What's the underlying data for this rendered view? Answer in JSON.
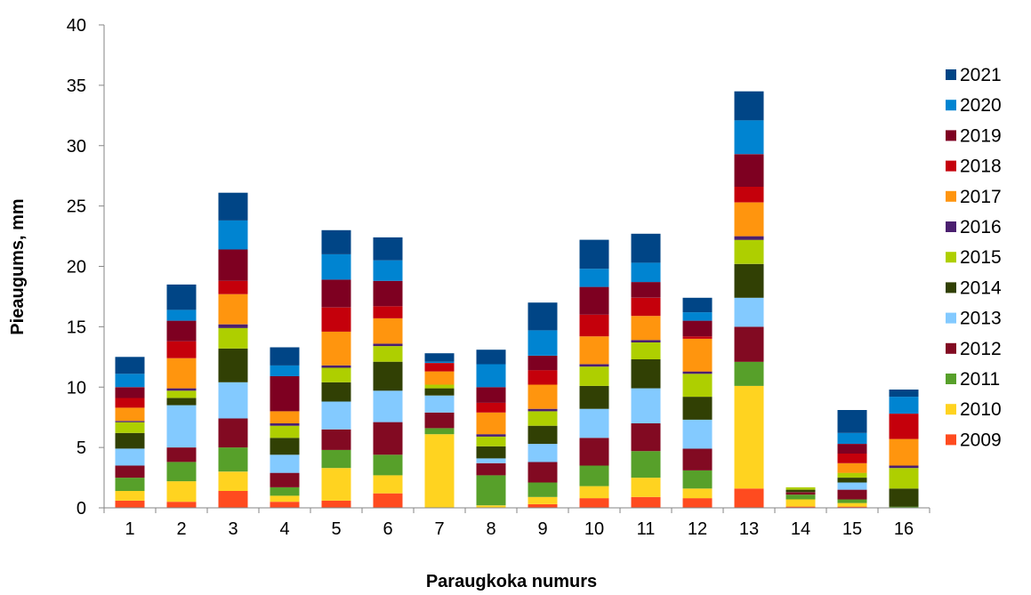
{
  "chart_data": {
    "type": "bar",
    "stacked": true,
    "xlabel": "Paraugkoka numurs",
    "ylabel": "Pieaugums, mm",
    "ylim": [
      0,
      40
    ],
    "yticks": [
      0,
      5,
      10,
      15,
      20,
      25,
      30,
      35,
      40
    ],
    "grid": false,
    "legend_position": "right",
    "categories": [
      "1",
      "2",
      "3",
      "4",
      "5",
      "6",
      "7",
      "8",
      "9",
      "10",
      "11",
      "12",
      "13",
      "14",
      "15",
      "16"
    ],
    "series": [
      {
        "name": "2009",
        "color": "#FF4B1F",
        "values": [
          0.6,
          0.5,
          1.4,
          0.5,
          0.6,
          1.2,
          0,
          0,
          0.3,
          0.8,
          0.9,
          0.8,
          1.6,
          0.1,
          0.1,
          0
        ]
      },
      {
        "name": "2010",
        "color": "#FFD320",
        "values": [
          0.8,
          1.7,
          1.6,
          0.5,
          2.7,
          1.5,
          6.1,
          0.2,
          0.6,
          1.0,
          1.6,
          0.8,
          8.5,
          0.6,
          0.3,
          0
        ]
      },
      {
        "name": "2011",
        "color": "#57A02A",
        "values": [
          1.1,
          1.6,
          2.0,
          0.7,
          1.5,
          1.7,
          0.5,
          2.5,
          1.2,
          1.7,
          2.2,
          1.5,
          2.0,
          0.4,
          0.3,
          0.1
        ]
      },
      {
        "name": "2012",
        "color": "#820A22",
        "values": [
          1.0,
          1.2,
          2.4,
          1.2,
          1.7,
          2.7,
          1.3,
          1.0,
          1.7,
          2.3,
          2.3,
          1.8,
          2.9,
          0.2,
          0.8,
          0
        ]
      },
      {
        "name": "2013",
        "color": "#83CAFF",
        "values": [
          1.4,
          3.5,
          3.0,
          1.5,
          2.3,
          2.6,
          1.4,
          0.4,
          1.5,
          2.4,
          2.9,
          2.4,
          2.4,
          0,
          0.6,
          0
        ]
      },
      {
        "name": "2014",
        "color": "#314004",
        "values": [
          1.3,
          0.6,
          2.8,
          1.4,
          1.6,
          2.4,
          0.6,
          1.0,
          1.5,
          1.9,
          2.4,
          1.9,
          2.8,
          0.2,
          0.4,
          1.5
        ]
      },
      {
        "name": "2015",
        "color": "#AECF00",
        "values": [
          0.9,
          0.6,
          1.7,
          1.0,
          1.2,
          1.3,
          0.3,
          0.8,
          1.2,
          1.6,
          1.4,
          1.9,
          2.0,
          0.2,
          0.4,
          1.7
        ]
      },
      {
        "name": "2016",
        "color": "#4B1F6F",
        "values": [
          0.1,
          0.2,
          0.3,
          0.2,
          0.2,
          0.2,
          0,
          0.2,
          0.2,
          0.2,
          0.2,
          0.2,
          0.3,
          0,
          0,
          0.2
        ]
      },
      {
        "name": "2017",
        "color": "#FF950E",
        "values": [
          1.1,
          2.5,
          2.5,
          1.0,
          2.8,
          2.1,
          1.1,
          1.8,
          2.0,
          2.3,
          2.0,
          2.7,
          2.8,
          0,
          0.8,
          2.2
        ]
      },
      {
        "name": "2018",
        "color": "#C5000B",
        "values": [
          0.8,
          1.4,
          1.1,
          0,
          2.0,
          1.0,
          0.7,
          0.8,
          1.2,
          1.8,
          1.5,
          0.2,
          1.3,
          0,
          0.8,
          2.1
        ]
      },
      {
        "name": "2019",
        "color": "#7E0021",
        "values": [
          0.9,
          1.7,
          2.6,
          2.9,
          2.3,
          2.1,
          0,
          1.3,
          1.2,
          2.3,
          1.3,
          1.3,
          2.7,
          0,
          0.8,
          0
        ]
      },
      {
        "name": "2020",
        "color": "#0084D1",
        "values": [
          1.1,
          0.9,
          2.4,
          0.9,
          2.1,
          1.7,
          0.1,
          1.9,
          2.1,
          1.5,
          1.6,
          0.7,
          2.8,
          0,
          0.9,
          1.4
        ]
      },
      {
        "name": "2021",
        "color": "#004586",
        "values": [
          1.4,
          2.1,
          2.3,
          1.5,
          2.0,
          1.9,
          0.7,
          1.2,
          2.3,
          2.4,
          2.4,
          1.2,
          2.4,
          0,
          1.9,
          0.6
        ]
      }
    ]
  }
}
